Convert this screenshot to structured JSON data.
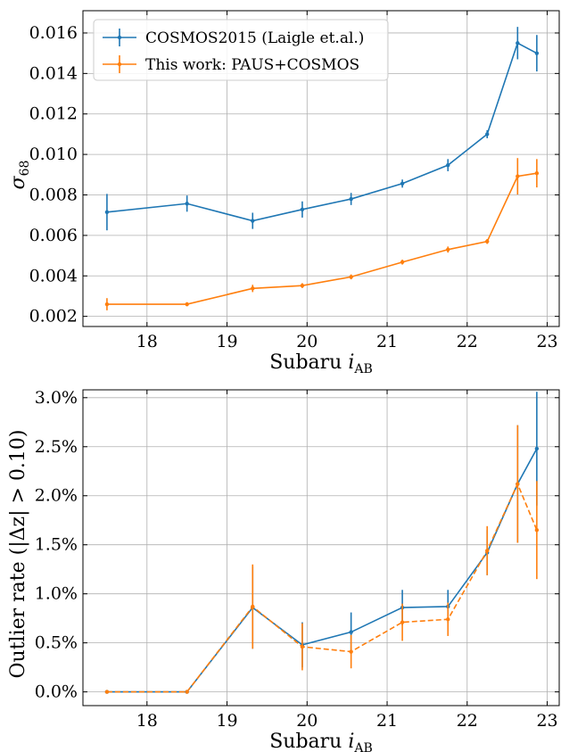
{
  "chart_data": [
    {
      "type": "line",
      "xlabel": "Subaru i_AB",
      "ylabel": "σ_68",
      "xlim": [
        17.2,
        23.15
      ],
      "ylim": [
        0.0015,
        0.0171
      ],
      "x_ticks": [
        18,
        19,
        20,
        21,
        22,
        23
      ],
      "x_tick_labels": [
        "18",
        "19",
        "20",
        "21",
        "22",
        "23"
      ],
      "y_ticks": [
        0.002,
        0.004,
        0.006,
        0.008,
        0.01,
        0.012,
        0.014,
        0.016
      ],
      "y_tick_labels": [
        "0.002",
        "0.004",
        "0.006",
        "0.008",
        "0.010",
        "0.012",
        "0.014",
        "0.016"
      ],
      "grid": true,
      "legend": "top-left",
      "series": [
        {
          "name": "COSMOS2015 (Laigle et.al.)",
          "color": "#1f77b4",
          "linestyle": "solid",
          "x": [
            17.5,
            18.5,
            19.32,
            19.94,
            20.55,
            21.19,
            21.76,
            22.25,
            22.63,
            22.87
          ],
          "y": [
            0.00715,
            0.00757,
            0.00672,
            0.00728,
            0.0078,
            0.00856,
            0.00947,
            0.011,
            0.0155,
            0.015
          ],
          "yerr": [
            0.0009,
            0.0004,
            0.0004,
            0.0004,
            0.0003,
            0.0002,
            0.0003,
            0.0002,
            0.0008,
            0.0009
          ]
        },
        {
          "name": "This work: PAUS+COSMOS",
          "color": "#ff7f0e",
          "linestyle": "solid",
          "x": [
            17.5,
            18.5,
            19.32,
            19.94,
            20.55,
            21.19,
            21.76,
            22.25,
            22.63,
            22.87
          ],
          "y": [
            0.0026,
            0.0026,
            0.00338,
            0.00352,
            0.00395,
            0.00468,
            0.0053,
            0.0057,
            0.00892,
            0.00907
          ],
          "yerr": [
            0.0003,
            0.0001,
            0.00018,
            0.00012,
            0.00012,
            0.00012,
            0.00015,
            0.00012,
            0.0009,
            0.0007
          ]
        }
      ]
    },
    {
      "type": "line",
      "xlabel": "Subaru i_AB",
      "ylabel": "Outlier rate (|Δz| > 0.10)",
      "xlim": [
        17.2,
        23.15
      ],
      "ylim": [
        -0.14,
        3.08
      ],
      "x_ticks": [
        18,
        19,
        20,
        21,
        22,
        23
      ],
      "x_tick_labels": [
        "18",
        "19",
        "20",
        "21",
        "22",
        "23"
      ],
      "y_ticks": [
        0.0,
        0.5,
        1.0,
        1.5,
        2.0,
        2.5,
        3.0
      ],
      "y_tick_labels": [
        "0.0%",
        "0.5%",
        "1.0%",
        "1.5%",
        "2.0%",
        "2.5%",
        "3.0%"
      ],
      "grid": true,
      "series": [
        {
          "color": "#1f77b4",
          "linestyle": "solid",
          "x": [
            17.5,
            18.5,
            19.32,
            19.94,
            20.55,
            21.19,
            21.76,
            22.25,
            22.63,
            22.87
          ],
          "y": [
            0.0,
            0.0,
            0.86,
            0.48,
            0.61,
            0.86,
            0.87,
            1.42,
            2.12,
            2.48
          ],
          "yerr": [
            0.0,
            0.0,
            0.42,
            0.23,
            0.2,
            0.18,
            0.17,
            0.23,
            0.6,
            0.58
          ]
        },
        {
          "color": "#ff7f0e",
          "linestyle": "dashed",
          "x": [
            17.5,
            18.5,
            19.32,
            19.94,
            20.55,
            21.19,
            21.76,
            22.25,
            22.63,
            22.87
          ],
          "y": [
            0.0,
            0.0,
            0.87,
            0.46,
            0.41,
            0.71,
            0.74,
            1.44,
            2.12,
            1.65
          ],
          "yerr": [
            0.0,
            0.0,
            0.43,
            0.24,
            0.17,
            0.19,
            0.17,
            0.25,
            0.6,
            0.5
          ]
        }
      ]
    }
  ]
}
